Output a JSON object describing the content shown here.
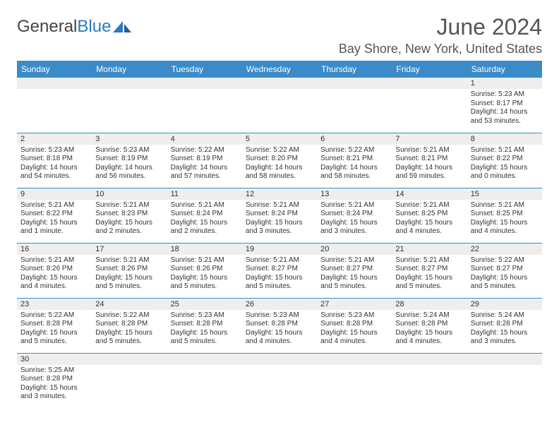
{
  "logo": {
    "word1": "General",
    "word2": "Blue"
  },
  "title": "June 2024",
  "location": "Bay Shore, New York, United States",
  "colors": {
    "header_bg": "#3b8bc8",
    "header_text": "#ffffff",
    "daynum_bg": "#eeeeee",
    "cell_border": "#3b8bc8",
    "title_color": "#555555",
    "logo_gray": "#444444",
    "logo_blue": "#2b7bbf"
  },
  "weekdays": [
    "Sunday",
    "Monday",
    "Tuesday",
    "Wednesday",
    "Thursday",
    "Friday",
    "Saturday"
  ],
  "weeks": [
    [
      null,
      null,
      null,
      null,
      null,
      null,
      {
        "n": "1",
        "sr": "Sunrise: 5:23 AM",
        "ss": "Sunset: 8:17 PM",
        "dl": "Daylight: 14 hours and 53 minutes."
      }
    ],
    [
      {
        "n": "2",
        "sr": "Sunrise: 5:23 AM",
        "ss": "Sunset: 8:18 PM",
        "dl": "Daylight: 14 hours and 54 minutes."
      },
      {
        "n": "3",
        "sr": "Sunrise: 5:23 AM",
        "ss": "Sunset: 8:19 PM",
        "dl": "Daylight: 14 hours and 56 minutes."
      },
      {
        "n": "4",
        "sr": "Sunrise: 5:22 AM",
        "ss": "Sunset: 8:19 PM",
        "dl": "Daylight: 14 hours and 57 minutes."
      },
      {
        "n": "5",
        "sr": "Sunrise: 5:22 AM",
        "ss": "Sunset: 8:20 PM",
        "dl": "Daylight: 14 hours and 58 minutes."
      },
      {
        "n": "6",
        "sr": "Sunrise: 5:22 AM",
        "ss": "Sunset: 8:21 PM",
        "dl": "Daylight: 14 hours and 58 minutes."
      },
      {
        "n": "7",
        "sr": "Sunrise: 5:21 AM",
        "ss": "Sunset: 8:21 PM",
        "dl": "Daylight: 14 hours and 59 minutes."
      },
      {
        "n": "8",
        "sr": "Sunrise: 5:21 AM",
        "ss": "Sunset: 8:22 PM",
        "dl": "Daylight: 15 hours and 0 minutes."
      }
    ],
    [
      {
        "n": "9",
        "sr": "Sunrise: 5:21 AM",
        "ss": "Sunset: 8:22 PM",
        "dl": "Daylight: 15 hours and 1 minute."
      },
      {
        "n": "10",
        "sr": "Sunrise: 5:21 AM",
        "ss": "Sunset: 8:23 PM",
        "dl": "Daylight: 15 hours and 2 minutes."
      },
      {
        "n": "11",
        "sr": "Sunrise: 5:21 AM",
        "ss": "Sunset: 8:24 PM",
        "dl": "Daylight: 15 hours and 2 minutes."
      },
      {
        "n": "12",
        "sr": "Sunrise: 5:21 AM",
        "ss": "Sunset: 8:24 PM",
        "dl": "Daylight: 15 hours and 3 minutes."
      },
      {
        "n": "13",
        "sr": "Sunrise: 5:21 AM",
        "ss": "Sunset: 8:24 PM",
        "dl": "Daylight: 15 hours and 3 minutes."
      },
      {
        "n": "14",
        "sr": "Sunrise: 5:21 AM",
        "ss": "Sunset: 8:25 PM",
        "dl": "Daylight: 15 hours and 4 minutes."
      },
      {
        "n": "15",
        "sr": "Sunrise: 5:21 AM",
        "ss": "Sunset: 8:25 PM",
        "dl": "Daylight: 15 hours and 4 minutes."
      }
    ],
    [
      {
        "n": "16",
        "sr": "Sunrise: 5:21 AM",
        "ss": "Sunset: 8:26 PM",
        "dl": "Daylight: 15 hours and 4 minutes."
      },
      {
        "n": "17",
        "sr": "Sunrise: 5:21 AM",
        "ss": "Sunset: 8:26 PM",
        "dl": "Daylight: 15 hours and 5 minutes."
      },
      {
        "n": "18",
        "sr": "Sunrise: 5:21 AM",
        "ss": "Sunset: 8:26 PM",
        "dl": "Daylight: 15 hours and 5 minutes."
      },
      {
        "n": "19",
        "sr": "Sunrise: 5:21 AM",
        "ss": "Sunset: 8:27 PM",
        "dl": "Daylight: 15 hours and 5 minutes."
      },
      {
        "n": "20",
        "sr": "Sunrise: 5:21 AM",
        "ss": "Sunset: 8:27 PM",
        "dl": "Daylight: 15 hours and 5 minutes."
      },
      {
        "n": "21",
        "sr": "Sunrise: 5:21 AM",
        "ss": "Sunset: 8:27 PM",
        "dl": "Daylight: 15 hours and 5 minutes."
      },
      {
        "n": "22",
        "sr": "Sunrise: 5:22 AM",
        "ss": "Sunset: 8:27 PM",
        "dl": "Daylight: 15 hours and 5 minutes."
      }
    ],
    [
      {
        "n": "23",
        "sr": "Sunrise: 5:22 AM",
        "ss": "Sunset: 8:28 PM",
        "dl": "Daylight: 15 hours and 5 minutes."
      },
      {
        "n": "24",
        "sr": "Sunrise: 5:22 AM",
        "ss": "Sunset: 8:28 PM",
        "dl": "Daylight: 15 hours and 5 minutes."
      },
      {
        "n": "25",
        "sr": "Sunrise: 5:23 AM",
        "ss": "Sunset: 8:28 PM",
        "dl": "Daylight: 15 hours and 5 minutes."
      },
      {
        "n": "26",
        "sr": "Sunrise: 5:23 AM",
        "ss": "Sunset: 8:28 PM",
        "dl": "Daylight: 15 hours and 4 minutes."
      },
      {
        "n": "27",
        "sr": "Sunrise: 5:23 AM",
        "ss": "Sunset: 8:28 PM",
        "dl": "Daylight: 15 hours and 4 minutes."
      },
      {
        "n": "28",
        "sr": "Sunrise: 5:24 AM",
        "ss": "Sunset: 8:28 PM",
        "dl": "Daylight: 15 hours and 4 minutes."
      },
      {
        "n": "29",
        "sr": "Sunrise: 5:24 AM",
        "ss": "Sunset: 8:28 PM",
        "dl": "Daylight: 15 hours and 3 minutes."
      }
    ],
    [
      {
        "n": "30",
        "sr": "Sunrise: 5:25 AM",
        "ss": "Sunset: 8:28 PM",
        "dl": "Daylight: 15 hours and 3 minutes."
      },
      null,
      null,
      null,
      null,
      null,
      null
    ]
  ]
}
